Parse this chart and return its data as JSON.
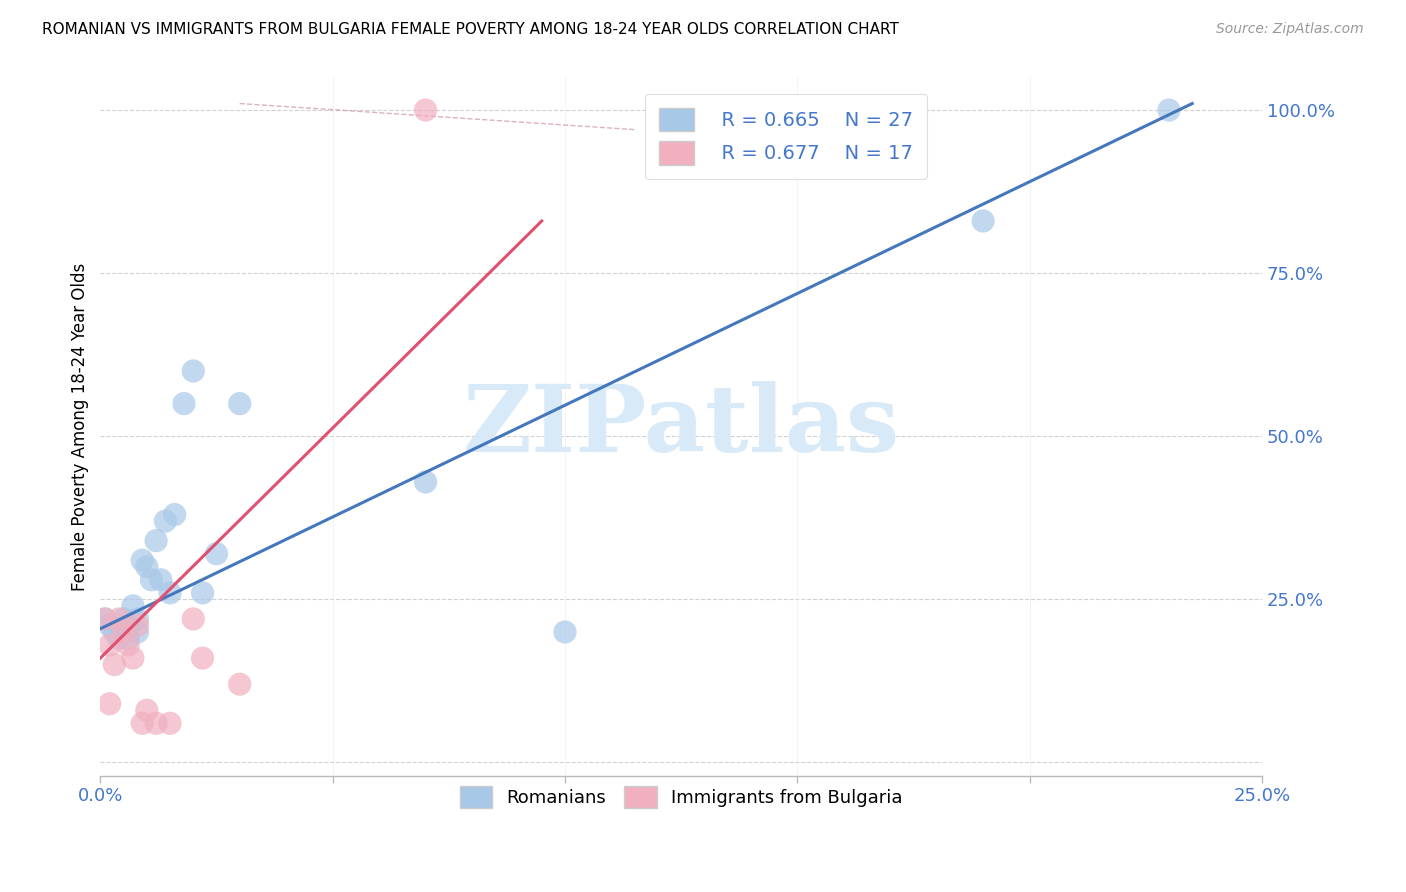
{
  "title": "ROMANIAN VS IMMIGRANTS FROM BULGARIA FEMALE POVERTY AMONG 18-24 YEAR OLDS CORRELATION CHART",
  "source": "Source: ZipAtlas.com",
  "ylabel": "Female Poverty Among 18-24 Year Olds",
  "xlim": [
    0.0,
    0.25
  ],
  "ylim": [
    -0.02,
    1.05
  ],
  "xticks": [
    0.0,
    0.05,
    0.1,
    0.15,
    0.2,
    0.25
  ],
  "yticks": [
    0.0,
    0.25,
    0.5,
    0.75,
    1.0
  ],
  "ytick_labels": [
    "",
    "25.0%",
    "50.0%",
    "75.0%",
    "100.0%"
  ],
  "xtick_labels": [
    "0.0%",
    "",
    "",
    "",
    "",
    "25.0%"
  ],
  "legend_r1": "R = 0.665",
  "legend_n1": "N = 27",
  "legend_r2": "R = 0.677",
  "legend_n2": "N = 17",
  "blue_color": "#A8C8E8",
  "pink_color": "#F0B0C0",
  "blue_line_color": "#4477BB",
  "pink_line_color": "#E05070",
  "axis_label_color": "#4477CC",
  "watermark": "ZIPatlas",
  "watermark_color": "#D8EAF8",
  "blue_scatter_x": [
    0.001,
    0.002,
    0.003,
    0.004,
    0.005,
    0.006,
    0.006,
    0.007,
    0.008,
    0.008,
    0.009,
    0.01,
    0.011,
    0.012,
    0.013,
    0.014,
    0.015,
    0.016,
    0.018,
    0.02,
    0.022,
    0.025,
    0.03,
    0.07,
    0.1,
    0.19,
    0.23
  ],
  "blue_scatter_y": [
    0.22,
    0.21,
    0.2,
    0.19,
    0.22,
    0.21,
    0.19,
    0.24,
    0.2,
    0.22,
    0.31,
    0.3,
    0.28,
    0.34,
    0.28,
    0.37,
    0.26,
    0.38,
    0.55,
    0.6,
    0.26,
    0.32,
    0.55,
    0.43,
    0.2,
    0.83,
    1.0
  ],
  "pink_scatter_x": [
    0.001,
    0.002,
    0.003,
    0.004,
    0.005,
    0.006,
    0.007,
    0.008,
    0.009,
    0.01,
    0.012,
    0.015,
    0.02,
    0.022,
    0.03,
    0.07,
    0.002
  ],
  "pink_scatter_y": [
    0.22,
    0.18,
    0.15,
    0.22,
    0.2,
    0.18,
    0.16,
    0.21,
    0.06,
    0.08,
    0.06,
    0.06,
    0.22,
    0.16,
    0.12,
    1.0,
    0.09
  ],
  "blue_line_x": [
    0.0,
    0.235
  ],
  "blue_line_y": [
    0.205,
    1.01
  ],
  "pink_line_x": [
    0.0,
    0.095
  ],
  "pink_line_y": [
    0.16,
    0.83
  ],
  "diag_line_x": [
    0.03,
    0.115
  ],
  "diag_line_y": [
    1.01,
    0.97
  ]
}
